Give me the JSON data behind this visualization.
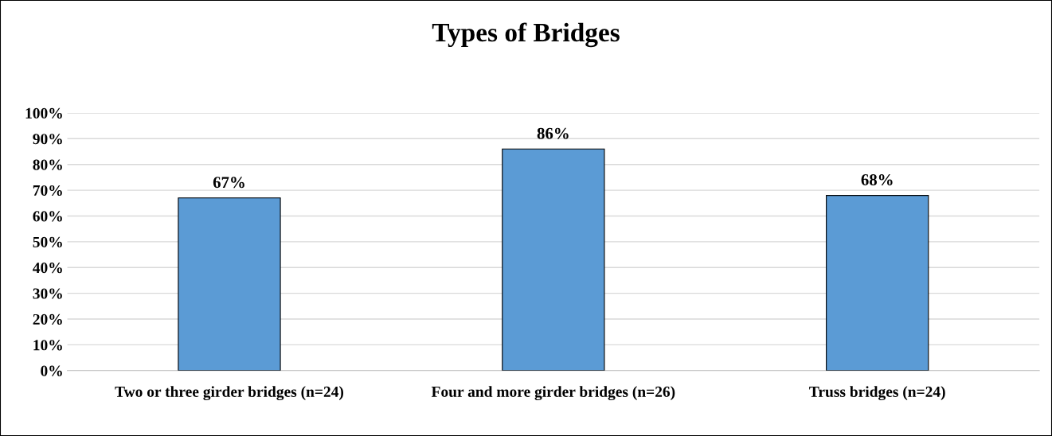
{
  "chart_data": {
    "type": "bar",
    "title": "Types of Bridges",
    "categories": [
      "Two or three girder bridges (n=24)",
      "Four and more girder bridges (n=26)",
      "Truss bridges (n=24)"
    ],
    "values": [
      67,
      86,
      68
    ],
    "color": "#5b9bd5",
    "value_labels": [
      "67%",
      "86%",
      "68%"
    ],
    "ylim": [
      0,
      100
    ],
    "yticks": [
      {
        "value": 0,
        "label": "0%"
      },
      {
        "value": 10,
        "label": "10%"
      },
      {
        "value": 20,
        "label": "20%"
      },
      {
        "value": 30,
        "label": "30%"
      },
      {
        "value": 40,
        "label": "40%"
      },
      {
        "value": 50,
        "label": "50%"
      },
      {
        "value": 60,
        "label": "60%"
      },
      {
        "value": 70,
        "label": "70%"
      },
      {
        "value": 80,
        "label": "80%"
      },
      {
        "value": 90,
        "label": "90%"
      },
      {
        "value": 100,
        "label": "100%"
      }
    ],
    "grid": "y",
    "legend": false
  }
}
